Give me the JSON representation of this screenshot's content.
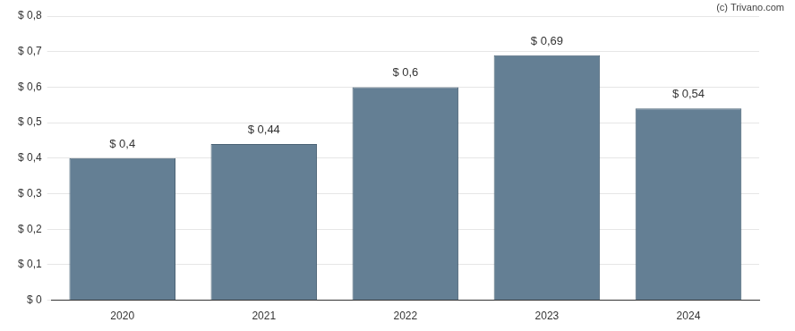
{
  "chart_data": {
    "type": "bar",
    "annotations": [
      "(c) Trivano.com"
    ],
    "categories": [
      "2020",
      "2021",
      "2022",
      "2023",
      "2024"
    ],
    "values": [
      0.4,
      0.44,
      0.6,
      0.69,
      0.54
    ],
    "value_labels": [
      "$ 0,4",
      "$ 0,44",
      "$ 0,6",
      "$ 0,69",
      "$ 0,54"
    ],
    "data_labels": true,
    "color": "#647f94",
    "ylim": [
      0,
      0.8
    ],
    "yticks": [
      {
        "value": 0,
        "label": "$ 0"
      },
      {
        "value": 0.1,
        "label": "$ 0,1"
      },
      {
        "value": 0.2,
        "label": "$ 0,2"
      },
      {
        "value": 0.3,
        "label": "$ 0,3"
      },
      {
        "value": 0.4,
        "label": "$ 0,4"
      },
      {
        "value": 0.5,
        "label": "$ 0,5"
      },
      {
        "value": 0.6,
        "label": "$ 0,6"
      },
      {
        "value": 0.7,
        "label": "$ 0,7"
      },
      {
        "value": 0.8,
        "label": "$ 0,8"
      }
    ],
    "grid": true
  }
}
